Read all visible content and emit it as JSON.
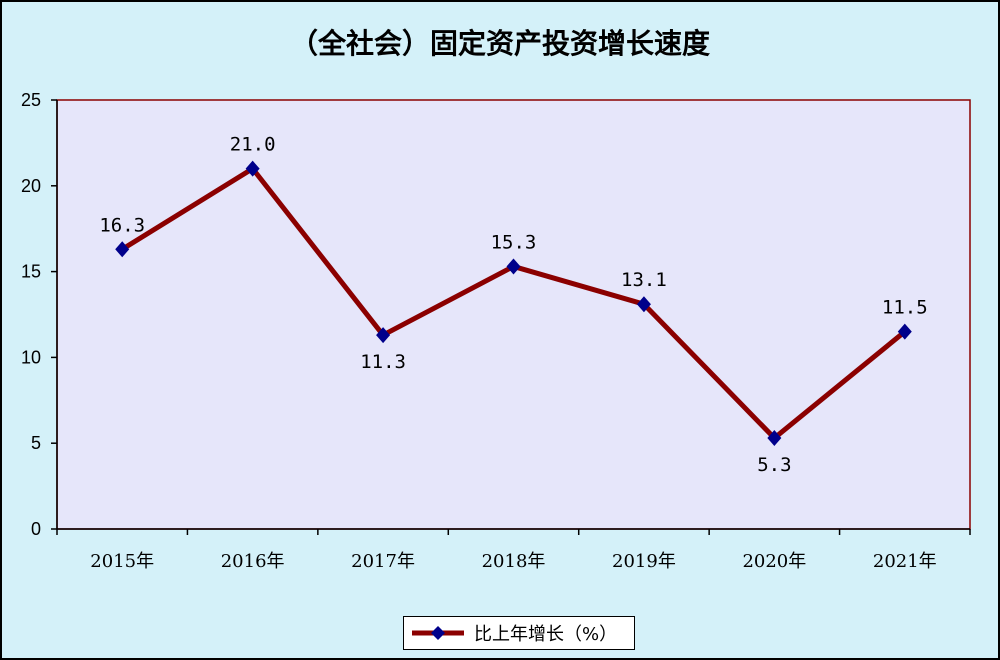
{
  "chart_data": {
    "type": "line",
    "title": "（全社会）固定资产投资增长速度",
    "categories": [
      "2015年",
      "2016年",
      "2017年",
      "2018年",
      "2019年",
      "2020年",
      "2021年"
    ],
    "series": [
      {
        "name": "比上年增长（%）",
        "values": [
          16.3,
          21.0,
          11.3,
          15.3,
          13.1,
          5.3,
          11.5
        ],
        "labels": [
          "16.3",
          "21.0",
          "11.3",
          "15.3",
          "13.1",
          "5.3",
          "11.5"
        ],
        "label_position": [
          "above",
          "above",
          "below",
          "above",
          "above",
          "below",
          "above"
        ]
      }
    ],
    "y_ticks": [
      "0",
      "5",
      "10",
      "15",
      "20",
      "25"
    ],
    "ylim": [
      0,
      25
    ],
    "grid": false,
    "legend_position": "bottom",
    "colors": {
      "line": "#8b0000",
      "marker": "#00008b",
      "plot_background": "#e6e6fa",
      "plot_border": "#8b0000",
      "background": "#d4f1f9"
    }
  }
}
